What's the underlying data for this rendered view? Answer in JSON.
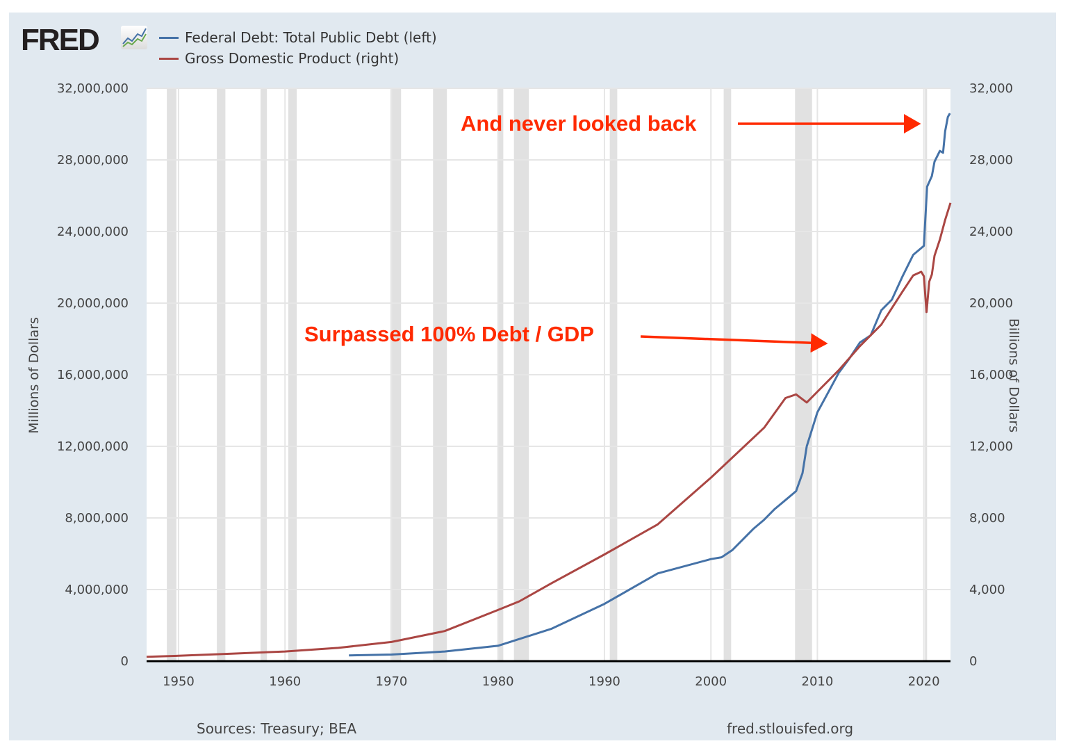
{
  "header": {
    "logo": "FRED",
    "logo_icon": "line-chart-icon"
  },
  "chart_data": {
    "type": "line",
    "legend": [
      {
        "label": "Federal Debt: Total Public Debt (left)",
        "color": "#4572a7"
      },
      {
        "label": "Gross Domestic Product (right)",
        "color": "#aa4643"
      }
    ],
    "legend_placement": "top-left",
    "xlim": [
      1947,
      2022.5
    ],
    "x_ticks": [
      "1950",
      "1960",
      "1970",
      "1980",
      "1990",
      "2000",
      "2010",
      "2020"
    ],
    "y_left": {
      "label": "Millions of Dollars",
      "lim": [
        0,
        32000000
      ],
      "ticks": [
        "0",
        "4,000,000",
        "8,000,000",
        "12,000,000",
        "16,000,000",
        "20,000,000",
        "24,000,000",
        "28,000,000",
        "32,000,000"
      ]
    },
    "y_right": {
      "label": "Billions of Dollars",
      "lim": [
        0,
        32000
      ],
      "ticks": [
        "0",
        "4,000",
        "8,000",
        "12,000",
        "16,000",
        "20,000",
        "24,000",
        "28,000",
        "32,000"
      ]
    },
    "grid": true,
    "recessions": [
      [
        1948.9,
        1949.8
      ],
      [
        1953.6,
        1954.4
      ],
      [
        1957.7,
        1958.3
      ],
      [
        1960.3,
        1961.1
      ],
      [
        1969.9,
        1970.9
      ],
      [
        1973.9,
        1975.2
      ],
      [
        1980.0,
        1980.5
      ],
      [
        1981.5,
        1982.9
      ],
      [
        1990.5,
        1991.2
      ],
      [
        2001.2,
        2001.9
      ],
      [
        2007.9,
        2009.5
      ],
      [
        2020.1,
        2020.3
      ]
    ],
    "series": [
      {
        "name": "Federal Debt: Total Public Debt",
        "axis": "left",
        "color": "#4572a7",
        "x": [
          1966,
          1970,
          1975,
          1980,
          1985,
          1990,
          1995,
          2000,
          2001,
          2002,
          2003,
          2004,
          2005,
          2006,
          2007,
          2008,
          2008.6,
          2009,
          2010,
          2011,
          2012,
          2013,
          2014,
          2015,
          2016,
          2017,
          2018,
          2019,
          2020.0,
          2020.3,
          2020.75,
          2021,
          2021.5,
          2021.8,
          2022,
          2022.25,
          2022.45
        ],
        "values": [
          320000,
          370000,
          540000,
          860000,
          1800000,
          3200000,
          4900000,
          5700000,
          5800000,
          6200000,
          6800000,
          7400000,
          7900000,
          8500000,
          9000000,
          9500000,
          10500000,
          12000000,
          13900000,
          15000000,
          16100000,
          16900000,
          17800000,
          18200000,
          19600000,
          20200000,
          21500000,
          22700000,
          23200000,
          26500000,
          27100000,
          27900000,
          28500000,
          28400000,
          29600000,
          30400000,
          30600000
        ]
      },
      {
        "name": "Gross Domestic Product",
        "axis": "right",
        "color": "#aa4643",
        "x": [
          1947,
          1950,
          1955,
          1960,
          1965,
          1970,
          1975,
          1980,
          1982,
          1985,
          1990,
          1995,
          2000,
          2005,
          2007,
          2008,
          2009,
          2010,
          2012,
          2014,
          2016,
          2018,
          2019,
          2019.75,
          2020.0,
          2020.25,
          2020.5,
          2020.75,
          2021,
          2021.5,
          2022,
          2022.5
        ],
        "values": [
          243,
          300,
          420,
          540,
          740,
          1070,
          1680,
          2860,
          3340,
          4340,
          5960,
          7640,
          10250,
          13040,
          14700,
          14900,
          14450,
          15050,
          16250,
          17600,
          18800,
          20650,
          21550,
          21750,
          21500,
          19500,
          21200,
          21600,
          22650,
          23550,
          24650,
          25600
        ]
      }
    ],
    "annotations": [
      {
        "text": "And never looked back"
      },
      {
        "text": "Surpassed 100%  Debt / GDP"
      }
    ]
  },
  "footer": {
    "sources": "Sources: Treasury; BEA",
    "site": "fred.stlouisfed.org"
  }
}
